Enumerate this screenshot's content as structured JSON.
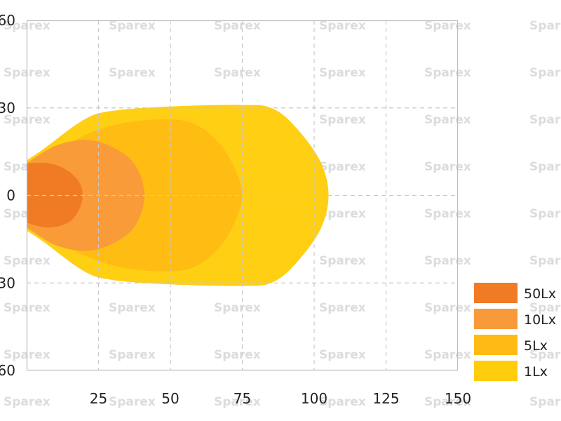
{
  "watermark": "Sparex",
  "chart_data": {
    "type": "area",
    "title": "",
    "xlabel": "",
    "ylabel": "",
    "xlim": [
      0,
      150
    ],
    "ylim": [
      -60,
      60
    ],
    "x_ticks": [
      "25",
      "50",
      "75",
      "100",
      "125",
      "150"
    ],
    "y_ticks": [
      "60",
      "30",
      "0",
      "30",
      "60"
    ],
    "grid": true,
    "legend_position": "bottom-right",
    "series": [
      {
        "name": "1Lx",
        "color": "#ffcd0c",
        "outline": [
          [
            0,
            12
          ],
          [
            6,
            16
          ],
          [
            20,
            26
          ],
          [
            30,
            29
          ],
          [
            50,
            30.5
          ],
          [
            75,
            31
          ],
          [
            85,
            30
          ],
          [
            93,
            24
          ],
          [
            102,
            12
          ],
          [
            105,
            0
          ],
          [
            102,
            -12
          ],
          [
            93,
            -24
          ],
          [
            85,
            -30
          ],
          [
            75,
            -31
          ],
          [
            50,
            -30.5
          ],
          [
            30,
            -29
          ],
          [
            20,
            -26
          ],
          [
            6,
            -16
          ],
          [
            0,
            -12
          ]
        ]
      },
      {
        "name": "5Lx",
        "color": "#ffbb14",
        "outline": [
          [
            0,
            7
          ],
          [
            15,
            18
          ],
          [
            30,
            24
          ],
          [
            45,
            26
          ],
          [
            57,
            25
          ],
          [
            66,
            19
          ],
          [
            72,
            10
          ],
          [
            75,
            0
          ],
          [
            72,
            -10
          ],
          [
            66,
            -19
          ],
          [
            57,
            -25
          ],
          [
            45,
            -26
          ],
          [
            30,
            -24
          ],
          [
            15,
            -18
          ],
          [
            0,
            -7
          ]
        ]
      },
      {
        "name": "10Lx",
        "color": "#f99a3a",
        "outline": [
          [
            0,
            11
          ],
          [
            10,
            17
          ],
          [
            21,
            19
          ],
          [
            31,
            16
          ],
          [
            38,
            10
          ],
          [
            41,
            0
          ],
          [
            38,
            -10
          ],
          [
            31,
            -16
          ],
          [
            21,
            -19
          ],
          [
            10,
            -17
          ],
          [
            0,
            -11
          ]
        ]
      },
      {
        "name": "50Lx",
        "color": "#f17a25",
        "outline": [
          [
            0,
            11
          ],
          [
            8,
            11
          ],
          [
            15,
            8
          ],
          [
            19,
            3
          ],
          [
            19,
            -3
          ],
          [
            15,
            -9
          ],
          [
            8,
            -11
          ],
          [
            2,
            -10
          ],
          [
            0,
            -9
          ]
        ]
      }
    ]
  }
}
